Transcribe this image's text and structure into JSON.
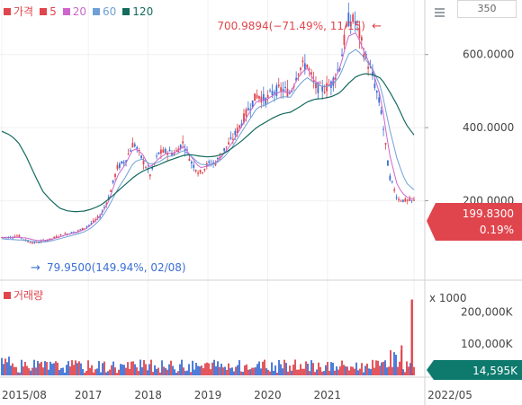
{
  "legend": {
    "items": [
      {
        "label": "가격",
        "color": "#e0454d"
      },
      {
        "label": "5",
        "color": "#e0454d"
      },
      {
        "label": "20",
        "color": "#cc66cc"
      },
      {
        "label": "60",
        "color": "#6ea0d6"
      },
      {
        "label": "120",
        "color": "#146b5e"
      }
    ]
  },
  "volume_legend": {
    "label": "거래량",
    "color": "#e0454d"
  },
  "controls": {
    "period_value": "350"
  },
  "icons": {
    "menu": "hamburger-menu-icon"
  },
  "colors": {
    "up": "#e0454d",
    "down": "#3b6fd6",
    "axis": "#c8c8c8",
    "current_price_bg": "#e0454d",
    "current_volume_bg": "#0d7a6d"
  },
  "chart_data": [
    {
      "type": "candlestick",
      "name": "price",
      "x_ticks": [
        "2015/08",
        "2017",
        "2018",
        "2019",
        "2020",
        "2021",
        "2022/05"
      ],
      "y_ticks": [
        "200.0000",
        "400.0000",
        "600.0000"
      ],
      "ylim": [
        0,
        700
      ],
      "annotations": {
        "high": {
          "text": "700.9894(−71.49%, 11/15)",
          "value": 700.9894
        },
        "low": {
          "text": "79.9500(149.94%, 02/08)",
          "value": 79.95
        }
      },
      "current": {
        "price": "199.8300",
        "change": "0.19%"
      },
      "series": {
        "x": [
          0,
          0.02,
          0.04,
          0.06,
          0.08,
          0.1,
          0.12,
          0.14,
          0.16,
          0.18,
          0.2,
          0.22,
          0.24,
          0.26,
          0.28,
          0.3,
          0.32,
          0.34,
          0.36,
          0.38,
          0.4,
          0.42,
          0.44,
          0.46,
          0.48,
          0.5,
          0.52,
          0.54,
          0.56,
          0.58,
          0.6,
          0.62,
          0.64,
          0.66,
          0.68,
          0.7,
          0.72,
          0.74,
          0.76,
          0.78,
          0.8,
          0.82,
          0.84,
          0.86,
          0.88,
          0.9,
          0.92,
          0.94,
          0.96,
          0.98,
          1.0
        ],
        "price": [
          100,
          100,
          105,
          90,
          85,
          90,
          95,
          105,
          110,
          115,
          125,
          140,
          160,
          210,
          290,
          310,
          360,
          315,
          270,
          330,
          335,
          330,
          360,
          305,
          275,
          300,
          305,
          340,
          370,
          410,
          455,
          490,
          475,
          500,
          505,
          495,
          560,
          575,
          512,
          505,
          520,
          570,
          695,
          690,
          600,
          540,
          450,
          270,
          205,
          200,
          199.83
        ],
        "ma20": [
          100,
          99,
          100,
          98,
          92,
          91,
          94,
          101,
          108,
          113,
          121,
          137,
          160,
          200,
          268,
          300,
          345,
          330,
          290,
          315,
          330,
          330,
          350,
          320,
          290,
          295,
          305,
          330,
          360,
          400,
          440,
          475,
          475,
          490,
          500,
          495,
          540,
          565,
          525,
          510,
          520,
          560,
          650,
          660,
          605,
          555,
          480,
          330,
          240,
          210,
          205
        ],
        "ma60": [
          96,
          94,
          93,
          92,
          88,
          87,
          90,
          96,
          102,
          108,
          115,
          128,
          150,
          185,
          230,
          265,
          305,
          315,
          300,
          305,
          320,
          325,
          338,
          322,
          300,
          298,
          302,
          320,
          348,
          385,
          420,
          455,
          462,
          475,
          485,
          483,
          515,
          538,
          520,
          512,
          515,
          540,
          600,
          615,
          590,
          560,
          510,
          400,
          310,
          250,
          230
        ],
        "ma120": [
          390,
          380,
          360,
          320,
          270,
          225,
          200,
          180,
          172,
          170,
          172,
          178,
          188,
          205,
          225,
          245,
          265,
          280,
          290,
          298,
          308,
          316,
          324,
          326,
          322,
          320,
          322,
          330,
          345,
          362,
          382,
          402,
          415,
          428,
          438,
          442,
          455,
          470,
          478,
          480,
          485,
          495,
          520,
          540,
          548,
          545,
          535,
          500,
          460,
          410,
          380
        ]
      }
    },
    {
      "type": "bar",
      "name": "volume",
      "unit": "x 1000",
      "y_ticks": [
        "100,000K",
        "200,000K"
      ],
      "ylim": [
        0,
        250000
      ],
      "current_value": "14,595K",
      "notable_spike": 240000
    }
  ]
}
